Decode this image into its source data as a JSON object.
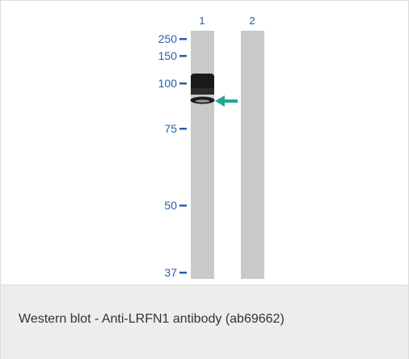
{
  "figure": {
    "lane_labels": [
      "1",
      "2"
    ],
    "marker_labels": [
      "250",
      "150",
      "100",
      "75",
      "50",
      "37"
    ],
    "label_color": "#2a5db0",
    "arrow_color": "#27a596",
    "lane_color": "#c9c9c9",
    "band_color": "#1a1a1a"
  },
  "caption": {
    "text": "Western blot - Anti-LRFN1 antibody (ab69662)"
  }
}
